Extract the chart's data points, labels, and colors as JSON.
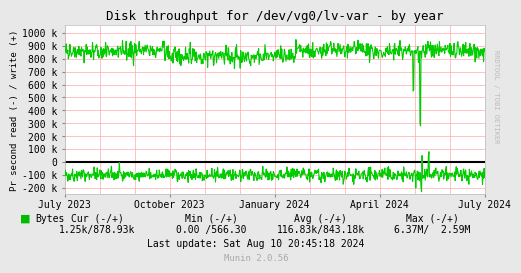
{
  "title": "Disk throughput for /dev/vg0/lv-var - by year",
  "ylabel": "Pr second read (-) / write (+)",
  "yticks": [
    1000000,
    900000,
    800000,
    700000,
    600000,
    500000,
    400000,
    300000,
    200000,
    100000,
    0,
    -100000,
    -200000
  ],
  "ytick_labels": [
    "1000 k",
    "900 k",
    "800 k",
    "700 k",
    "600 k",
    "500 k",
    "400 k",
    "300 k",
    "200 k",
    "100 k",
    "0",
    "-100 k",
    "-200 k"
  ],
  "ylim": [
    -250000,
    1060000
  ],
  "xtick_labels": [
    "July 2023",
    "October 2023",
    "January 2024",
    "April 2024",
    "July 2024"
  ],
  "xtick_positions": [
    0.0,
    0.25,
    0.5,
    0.75,
    1.0
  ],
  "bg_color": "#e8e8e8",
  "plot_bg_color": "#ffffff",
  "grid_color": "#ffaaaa",
  "line_color": "#00cc00",
  "zero_line_color": "#000000",
  "legend_label": "Bytes",
  "legend_color": "#00bb00",
  "cur": "1.25k/878.93k",
  "min_val": "0.00 /566.30",
  "avg_val": "116.83k/843.18k",
  "max_val": "6.37M/  2.59M",
  "last_update": "Last update: Sat Aug 10 20:45:18 2024",
  "munin_version": "Munin 2.0.56",
  "rrdtool_label": "RRDTOOL / TOBI OETIKER",
  "n_points": 800,
  "write_base": 860000,
  "write_noise": 35000,
  "read_base": -100000,
  "read_noise": 25000
}
